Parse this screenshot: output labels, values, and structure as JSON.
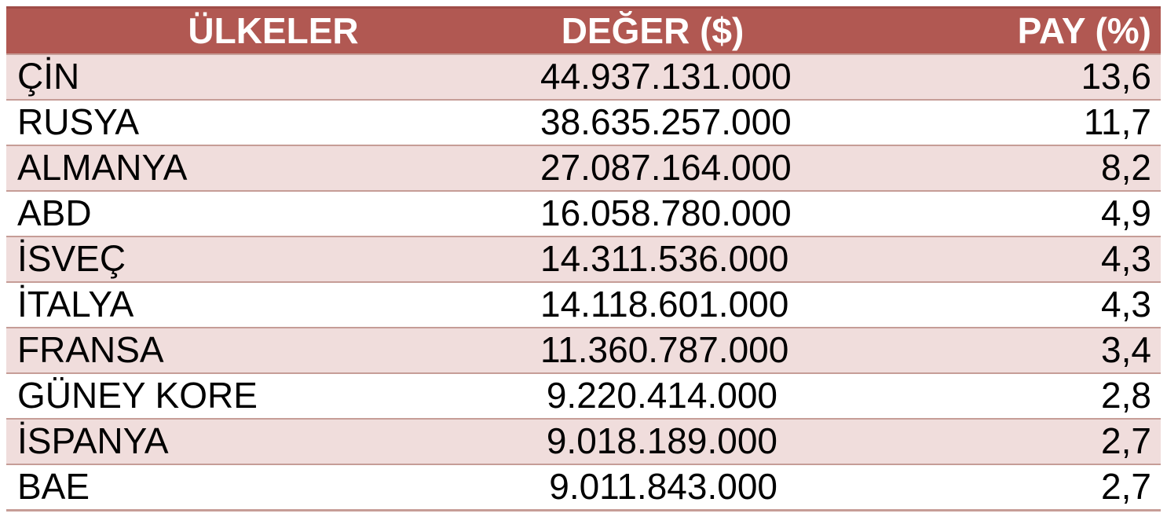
{
  "table": {
    "title": "countries-value-share-table",
    "columns": [
      {
        "key": "country",
        "label": "ÜLKELER"
      },
      {
        "key": "value",
        "label": "DEĞER ($)"
      },
      {
        "key": "share",
        "label": "PAY (%)"
      }
    ],
    "rows": [
      {
        "country": "ÇİN",
        "value": "44.937.131.000",
        "share": "13,6"
      },
      {
        "country": "RUSYA",
        "value": "38.635.257.000",
        "share": "11,7"
      },
      {
        "country": "ALMANYA",
        "value": "27.087.164.000",
        "share": "8,2"
      },
      {
        "country": "ABD",
        "value": "16.058.780.000",
        "share": "4,9"
      },
      {
        "country": "İSVEÇ",
        "value": "14.311.536.000",
        "share": "4,3"
      },
      {
        "country": "İTALYA",
        "value": "14.118.601.000",
        "share": "4,3"
      },
      {
        "country": "FRANSA",
        "value": "11.360.787.000",
        "share": "3,4"
      },
      {
        "country": "GÜNEY KORE",
        "value": "9.220.414.000",
        "share": "2,8"
      },
      {
        "country": "İSPANYA",
        "value": "9.018.189.000",
        "share": "2,7"
      },
      {
        "country": "BAE",
        "value": "9.011.843.000",
        "share": "2,7"
      }
    ]
  },
  "colors": {
    "header_bg": "#b15852",
    "header_top_border": "#9f4c47",
    "header_text": "#ffffff",
    "row_pink": "#f0dddc",
    "row_white": "#ffffff",
    "row_border": "#c69d97",
    "body_text": "#000000",
    "page_bg": "#ffffff"
  }
}
